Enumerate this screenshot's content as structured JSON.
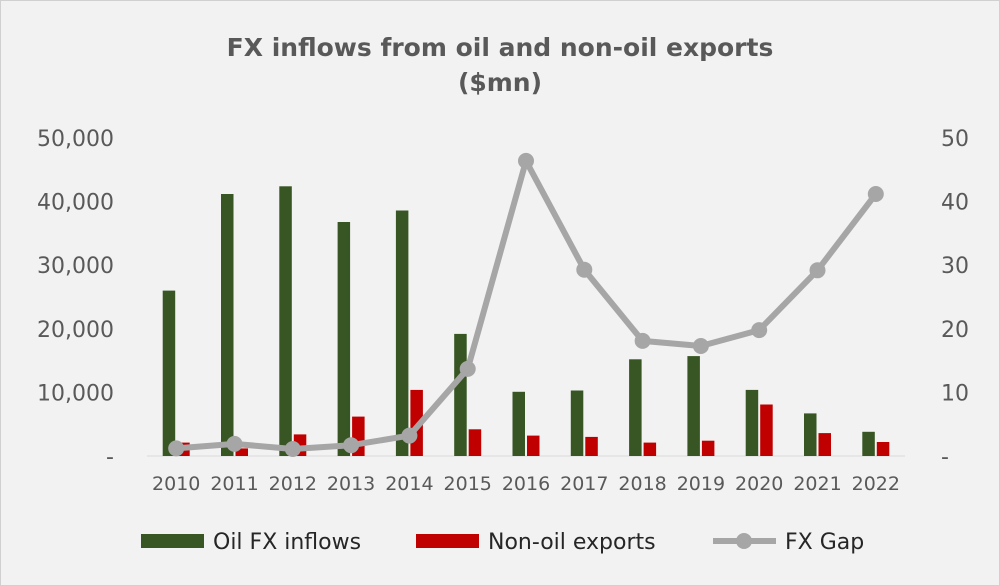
{
  "chart_data": {
    "type": "bar",
    "title": [
      "FX inflows from oil and non-oil exports",
      "($mn)"
    ],
    "categories": [
      "2010",
      "2011",
      "2012",
      "2013",
      "2014",
      "2015",
      "2016",
      "2017",
      "2018",
      "2019",
      "2020",
      "2021",
      "2022"
    ],
    "series": [
      {
        "name": "Oil FX inflows",
        "type": "bar",
        "axis": "left",
        "color": "#375623",
        "values": [
          26000,
          41200,
          42400,
          36800,
          38600,
          19200,
          10100,
          10300,
          15200,
          15700,
          10400,
          6700,
          3800
        ]
      },
      {
        "name": "Non-oil exports",
        "type": "bar",
        "axis": "left",
        "color": "#c00000",
        "values": [
          2100,
          1200,
          3400,
          6200,
          10400,
          4200,
          3200,
          3000,
          2100,
          2400,
          8100,
          3600,
          2200
        ]
      },
      {
        "name": "FX Gap",
        "type": "line",
        "axis": "right",
        "color": "#a6a6a6",
        "values": [
          1.2,
          1.9,
          1.1,
          1.7,
          3.2,
          13.7,
          46.4,
          29.3,
          18.1,
          17.3,
          19.8,
          29.2,
          41.2
        ]
      }
    ],
    "y_left": {
      "ylim": [
        0,
        50000
      ],
      "ticks": [
        0,
        10000,
        20000,
        30000,
        40000,
        50000
      ],
      "tick_labels": [
        "-",
        "10,000",
        "20,000",
        "30,000",
        "40,000",
        "50,000"
      ]
    },
    "y_right": {
      "ylim": [
        0,
        50
      ],
      "ticks": [
        0,
        10,
        20,
        30,
        40,
        50
      ],
      "tick_labels": [
        "-",
        "10",
        "20",
        "30",
        "40",
        "50"
      ]
    },
    "grid": false,
    "legend_position": "bottom"
  }
}
